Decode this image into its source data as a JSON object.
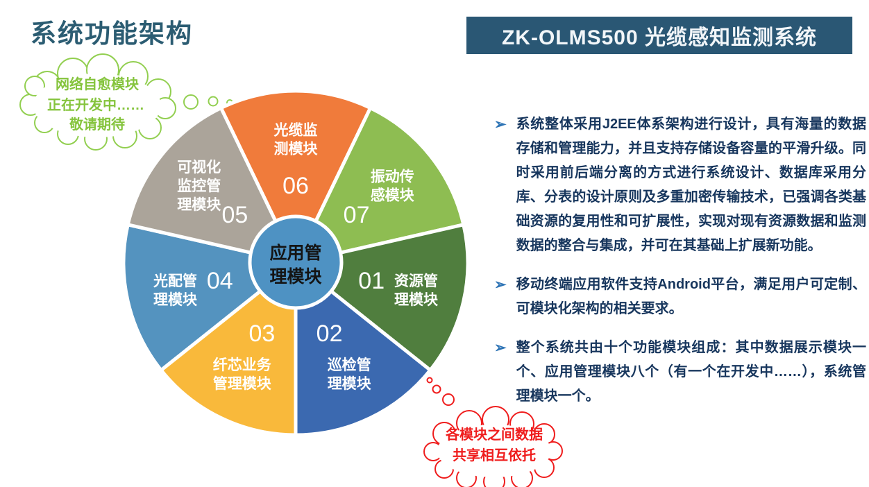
{
  "page": {
    "title": "系统功能架构",
    "banner": "ZK-OLMS500 光缆感知监测系统"
  },
  "bullets": [
    "系统整体采用J2EE体系架构进行设计，具有海量的数据存储和管理能力，并且支持存储设备容量的平滑升级。同时采用前后端分离的方式进行系统设计、数据库采用分库、分表的设计原则及多重加密传输技术，已强调各类基础资源的复用性和可扩展性，实现对现有资源数据和监测数据的整合与集成，并可在其基础上扩展新功能。",
    "移动终端应用软件支持Android平台，满足用户可定制、可模块化架构的相关要求。",
    "整个系统共由十个功能模块组成：其中数据展示模块一个、应用管理模块八个（有一个在开发中……），系统管理模块一个。"
  ],
  "bullet_marker": "➢",
  "clouds": {
    "green": {
      "lines": [
        "网络自愈模块",
        "正在开发中……",
        "敬请期待"
      ],
      "color": "#92CF50"
    },
    "red": {
      "lines": [
        "各模块之间数据",
        "共享相互依托"
      ],
      "color": "#EF1D1D"
    }
  },
  "chart_data": {
    "type": "pie",
    "title": "系统功能架构",
    "legend_position": "none",
    "center_label": [
      "应用管",
      "理模块"
    ],
    "center_color": "#4E92C3",
    "equal_slices": true,
    "slice_angle_deg": 51.4286,
    "start_angle_deg": -25.7143,
    "segments": [
      {
        "num": "06",
        "label": [
          "光缆监",
          "测模块"
        ],
        "color": "#F07B3B",
        "value": 1
      },
      {
        "num": "07",
        "label": [
          "振动传",
          "感模块"
        ],
        "color": "#8EBD52",
        "value": 1
      },
      {
        "num": "01",
        "label": [
          "资源管",
          "理模块"
        ],
        "color": "#507E3E",
        "value": 1
      },
      {
        "num": "02",
        "label": [
          "巡检管",
          "理模块"
        ],
        "color": "#3B69B0",
        "value": 1
      },
      {
        "num": "03",
        "label": [
          "纤芯业务",
          "管理模块"
        ],
        "color": "#F9B93B",
        "value": 1
      },
      {
        "num": "04",
        "label": [
          "光配管",
          "理模块"
        ],
        "color": "#5493BF",
        "value": 1
      },
      {
        "num": "05",
        "label": [
          "可视化",
          "监控管",
          "理模块"
        ],
        "color": "#ABA49A",
        "value": 1
      }
    ]
  }
}
